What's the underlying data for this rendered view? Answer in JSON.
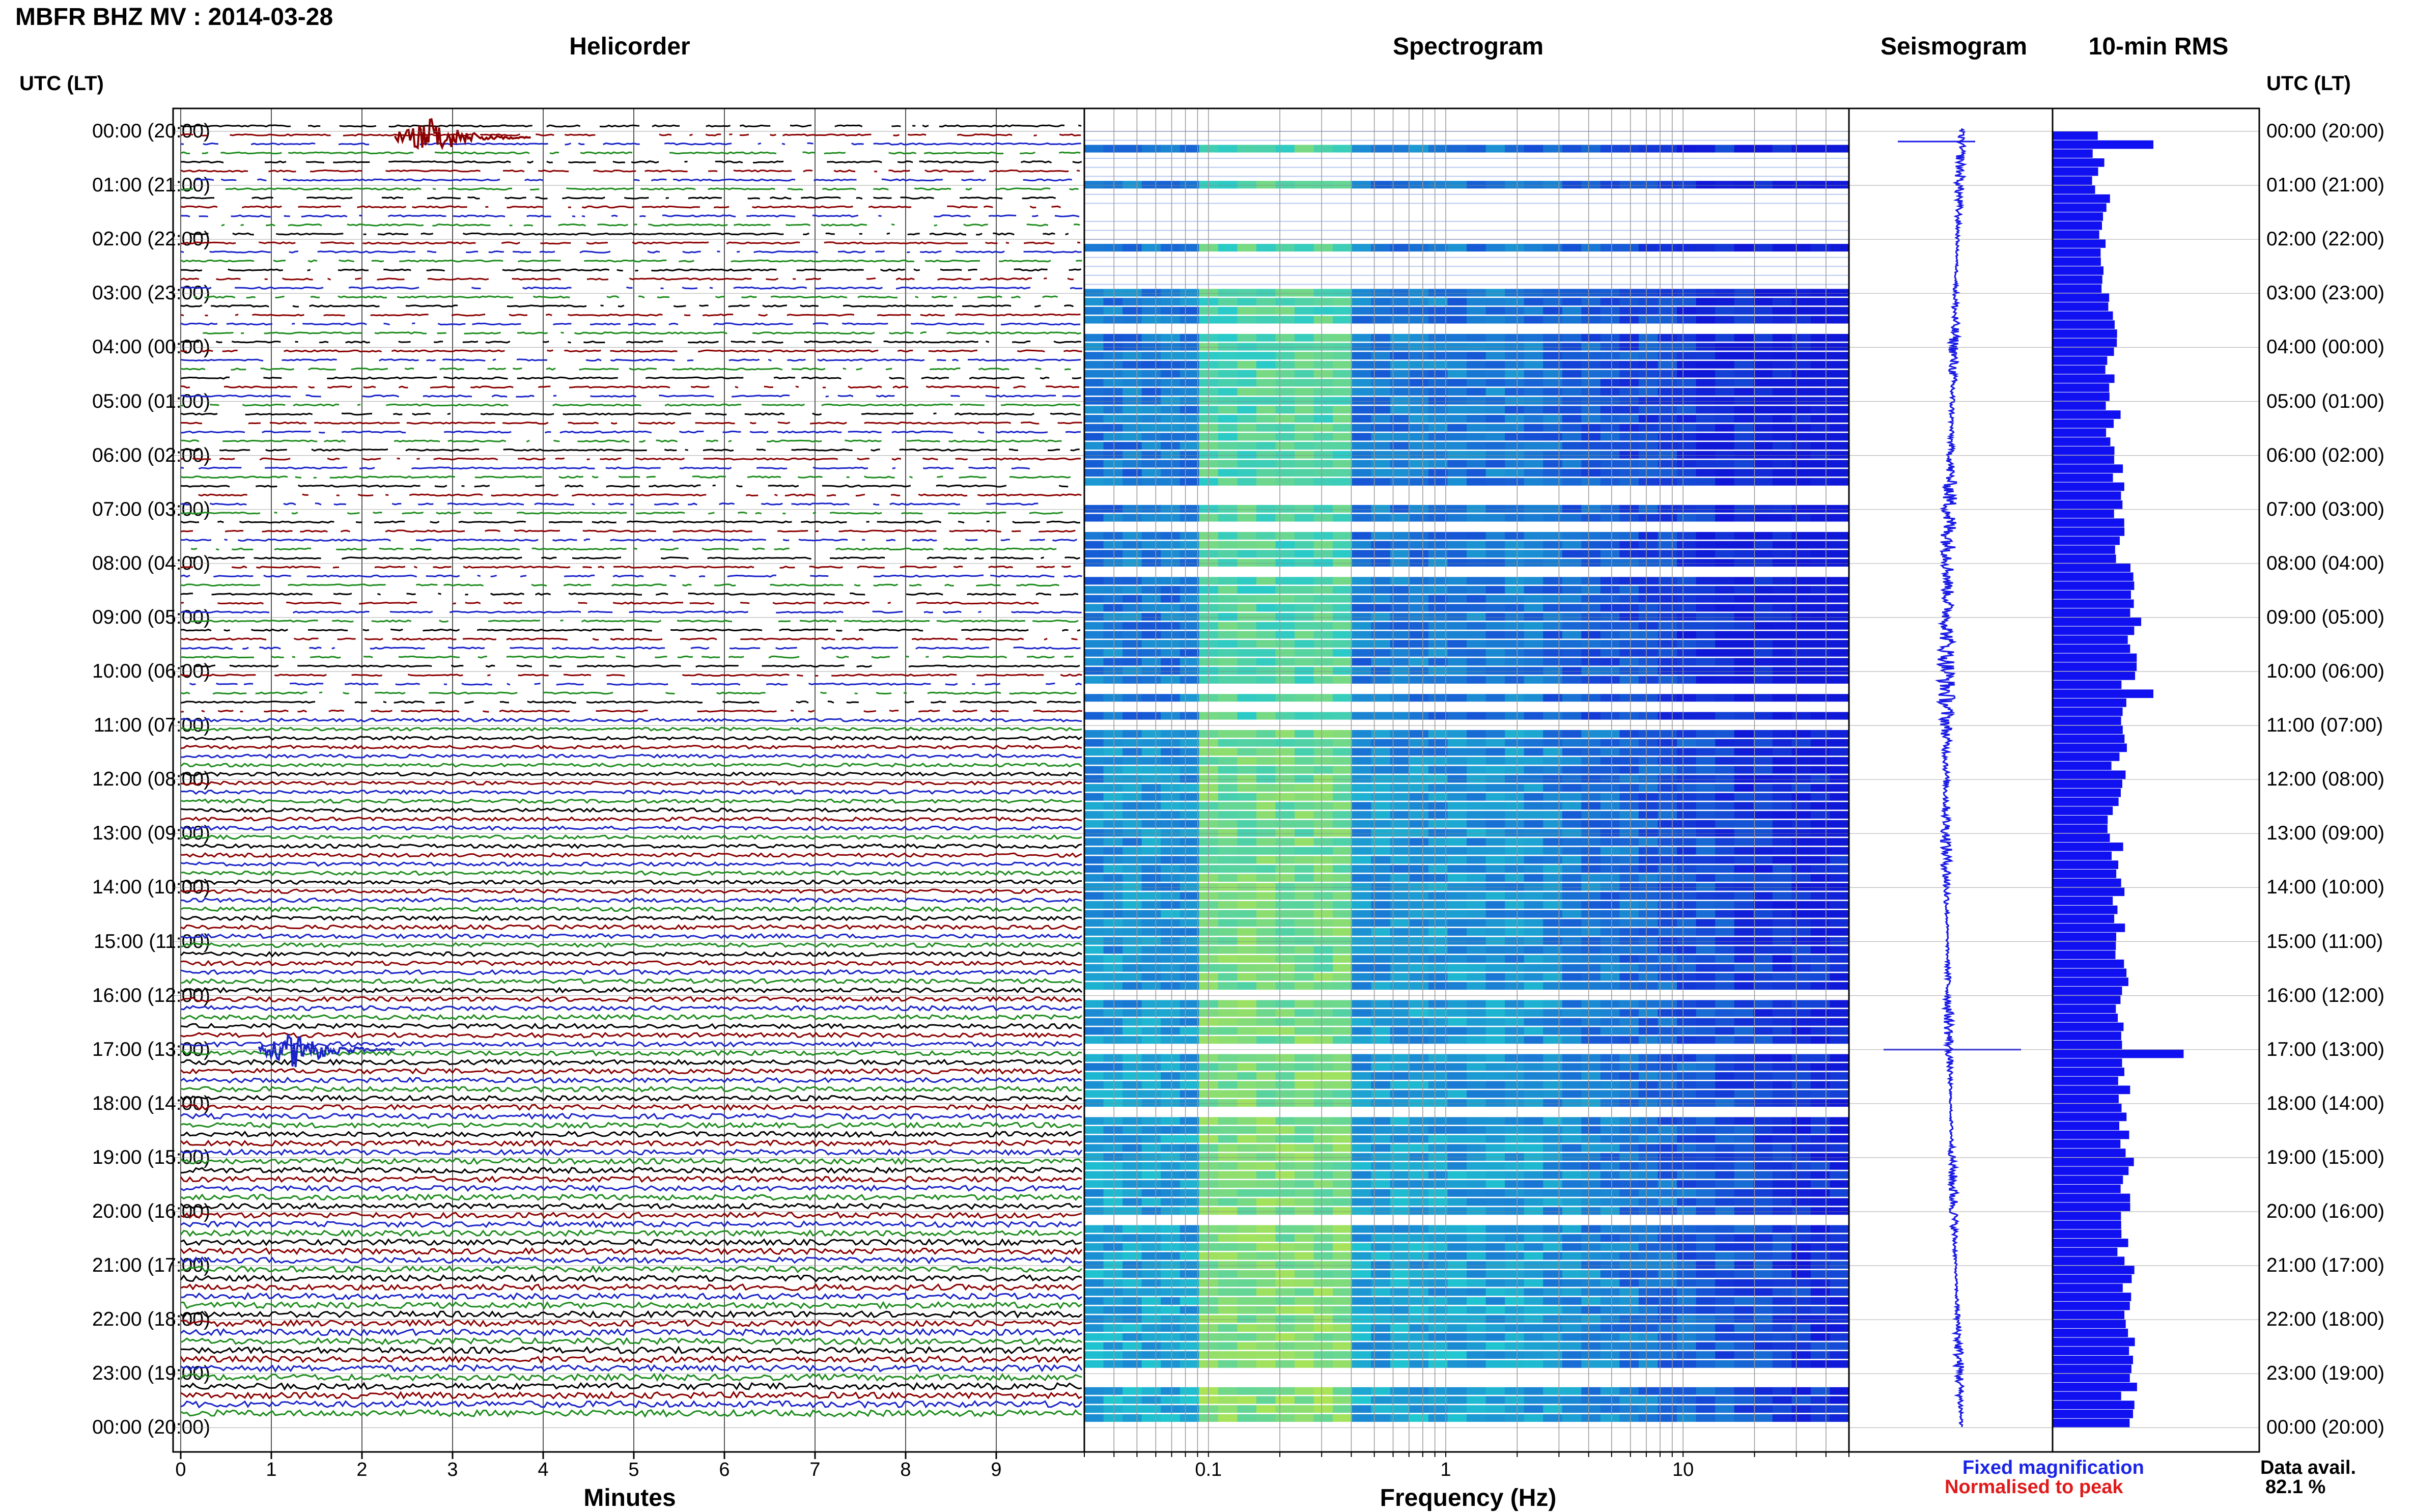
{
  "header": {
    "station_title": "MBFR BHZ MV : 2014-03-28"
  },
  "panels": {
    "helicorder": "Helicorder",
    "spectrogram": "Spectrogram",
    "seismogram": "Seismogram",
    "rms": "10-min RMS"
  },
  "time_axis": {
    "header_left": "UTC (LT)",
    "header_right": "UTC (LT)",
    "labels": [
      "00:00 (20:00)",
      "01:00 (21:00)",
      "02:00 (22:00)",
      "03:00 (23:00)",
      "04:00 (00:00)",
      "05:00 (01:00)",
      "06:00 (02:00)",
      "07:00 (03:00)",
      "08:00 (04:00)",
      "09:00 (05:00)",
      "10:00 (06:00)",
      "11:00 (07:00)",
      "12:00 (08:00)",
      "13:00 (09:00)",
      "14:00 (10:00)",
      "15:00 (11:00)",
      "16:00 (12:00)",
      "17:00 (13:00)",
      "18:00 (14:00)",
      "19:00 (15:00)",
      "20:00 (16:00)",
      "21:00 (17:00)",
      "22:00 (18:00)",
      "23:00 (19:00)",
      "00:00 (20:00)"
    ]
  },
  "footer": {
    "legend_fixed": "Fixed magnification",
    "legend_normalised": "Normalised to peak",
    "data_avail_label": "Data avail.",
    "data_avail_value": "82.1 %"
  },
  "colors": {
    "trace_cycle": [
      "#000000",
      "#8b0000",
      "#1a24c8",
      "#1e8c1e"
    ],
    "seismogram": "#1a1ae6",
    "rms_bar": "#1010f0",
    "spectrogram_low": "#1018d8",
    "spectrogram_mid": "#20c8d0",
    "spectrogram_high": "#e8f020",
    "legend_fixed": "#1a24e6",
    "legend_normalised": "#e01a1a"
  },
  "chart_data": [
    {
      "type": "line",
      "title": "Helicorder",
      "xlabel": "Minutes",
      "x_ticks": [
        "0",
        "1",
        "2",
        "3",
        "4",
        "5",
        "6",
        "7",
        "8",
        "9"
      ],
      "xlim": [
        0,
        10
      ],
      "rows_per_hour": 6,
      "trace_color_cycle": [
        "black",
        "darkred",
        "blue",
        "green"
      ],
      "notable_events": [
        {
          "time_utc": "00:00",
          "minute": 2.7,
          "description": "large event"
        },
        {
          "time_utc": "17:00",
          "minute": 1.2,
          "description": "large event"
        }
      ]
    },
    {
      "type": "heatmap",
      "title": "Spectrogram",
      "xlabel": "Frequency (Hz)",
      "x_scale": "log",
      "x_ticks": [
        "0.1",
        "1",
        "10"
      ],
      "xlim": [
        0.03,
        50
      ],
      "colormap": [
        "blue",
        "cyan",
        "yellow"
      ]
    },
    {
      "type": "line",
      "title": "Seismogram",
      "notable_spikes_utc": [
        "00:00",
        "17:00"
      ]
    },
    {
      "type": "bar",
      "title": "10-min RMS",
      "interval_minutes": 10,
      "hourly_relative_level": [
        0.22,
        0.25,
        0.25,
        0.28,
        0.27,
        0.3,
        0.33,
        0.32,
        0.38,
        0.4,
        0.37,
        0.33,
        0.31,
        0.32,
        0.32,
        0.34,
        0.33,
        0.35,
        0.36,
        0.37,
        0.36,
        0.37,
        0.38,
        0.38
      ],
      "peak_bins_utc": [
        "00:10",
        "10:20",
        "17:00"
      ]
    }
  ]
}
